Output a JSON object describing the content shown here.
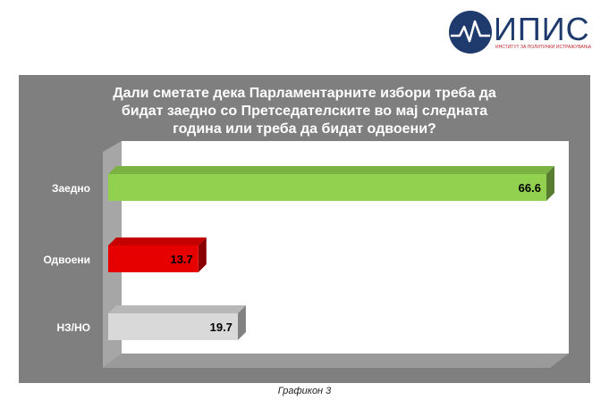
{
  "logo": {
    "name": "ИПИС",
    "subtitle": "ИНСТИТУТ ЗА ПОЛИТИЧКИ ИСТРАЖУВАЊА"
  },
  "chart_data": {
    "type": "bar",
    "orientation": "horizontal",
    "title_lines": [
      "Дали сметате дека Парламентарните избори треба да",
      "бидат заедно со Претседателските во мај следната",
      "година или треба да бидат одвоени?"
    ],
    "categories": [
      "Заедно",
      "Одвоени",
      "НЗ/НО"
    ],
    "values": [
      66.6,
      13.7,
      19.7
    ],
    "value_labels": [
      "66.6",
      "13.7",
      "19.7"
    ],
    "colors": [
      "#92d050",
      "#e60000",
      "#d9d9d9"
    ],
    "xlim": [
      0,
      70
    ],
    "grid": false,
    "legend": "none"
  },
  "caption": "Графикон 3"
}
